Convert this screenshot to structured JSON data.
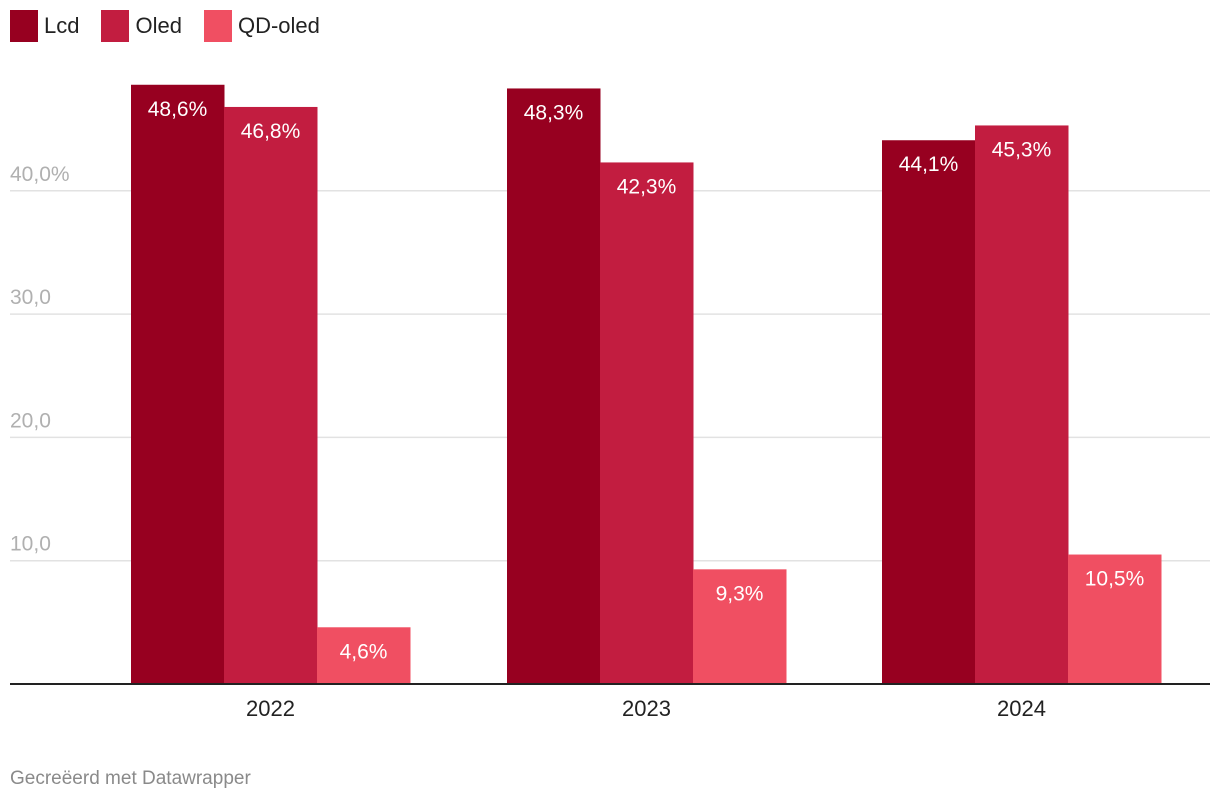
{
  "chart_data": {
    "type": "bar",
    "categories": [
      "2022",
      "2023",
      "2024"
    ],
    "series": [
      {
        "name": "Lcd",
        "color": "#970020",
        "values": [
          48.6,
          48.3,
          44.1
        ],
        "labels": [
          "48,6%",
          "48,3%",
          "44,1%"
        ]
      },
      {
        "name": "Oled",
        "color": "#c21d40",
        "values": [
          46.8,
          42.3,
          45.3
        ],
        "labels": [
          "46,8%",
          "42,3%",
          "45,3%"
        ]
      },
      {
        "name": "QD-oled",
        "color": "#f04f62",
        "values": [
          4.6,
          9.3,
          10.5
        ],
        "labels": [
          "4,6%",
          "9,3%",
          "10,5%"
        ]
      }
    ],
    "y_ticks": [
      10,
      20,
      30,
      40
    ],
    "y_tick_labels": [
      "10,0",
      "20,0",
      "30,0",
      "40,0%"
    ],
    "ylim": [
      0,
      50
    ],
    "xlabel": "",
    "ylabel": ""
  },
  "footer": "Gecreëerd met Datawrapper"
}
